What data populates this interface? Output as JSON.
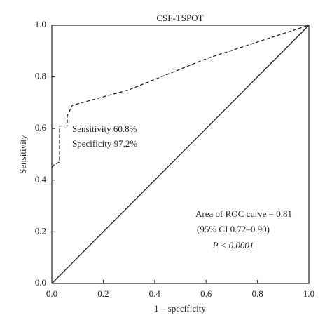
{
  "chart_data": {
    "type": "line",
    "title": "CSF-TSPOT",
    "xlabel": "1 – specificity",
    "ylabel": "Sensitivity",
    "xlim": [
      0,
      1
    ],
    "ylim": [
      0,
      1
    ],
    "xticks": [
      {
        "value": 0,
        "label": "0.0"
      },
      0.2,
      0.4,
      0.6,
      0.8,
      {
        "value": 1,
        "label": "1.0"
      }
    ],
    "yticks": [
      {
        "value": 0,
        "label": "0.0"
      },
      0.2,
      0.4,
      0.6,
      0.8,
      {
        "value": 1,
        "label": "1.0"
      }
    ],
    "series": [
      {
        "color": "#231f20",
        "dashed": true,
        "x": [
          0,
          0.01,
          0.03,
          0.03,
          0.03,
          0.06,
          0.06,
          0.08,
          0.3,
          0.6,
          1
        ],
        "values": [
          0.45,
          0.46,
          0.47,
          0.52,
          0.61,
          0.61,
          0.65,
          0.69,
          0.75,
          0.87,
          1
        ]
      },
      {
        "color": "#231f20",
        "dashed": false,
        "x": [
          0,
          1
        ],
        "values": [
          0,
          1
        ]
      }
    ],
    "annotations": [
      "Sensitivity 60.8%",
      "Specificity 97.2%",
      "Area of ROC curve = 0.81",
      "(95% CI 0.72–0.90)",
      "P < 0.0001"
    ]
  }
}
